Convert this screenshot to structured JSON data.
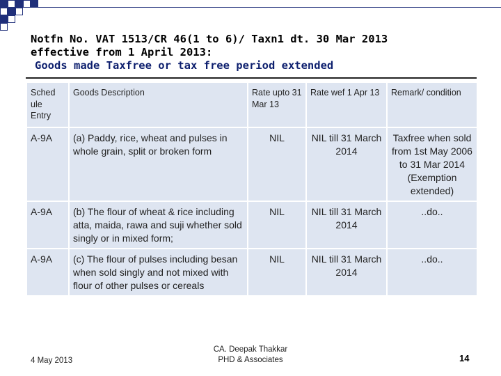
{
  "slide": {
    "title_line1": "Notfn No. VAT 1513/CR 46(1 to 6)/ Taxn1 dt. 30 Mar 2013",
    "title_line2": "effective from 1 April 2013:",
    "title_line3": "Goods made Taxfree or tax free period extended",
    "accent_color": "#1f2f7a",
    "table_fill": "#dee5f1"
  },
  "table": {
    "headers": {
      "entry": "Sched ule Entry",
      "description": "Goods Description",
      "rate_upto": "Rate upto 31 Mar 13",
      "rate_wef": "Rate wef 1 Apr 13",
      "remark": "Remark/ condition"
    },
    "rows": [
      {
        "entry": "A-9A",
        "description": "(a) Paddy, rice, wheat and pulses in whole grain, split or broken form",
        "rate_upto": "NIL",
        "rate_wef": "NIL till 31 March 2014",
        "remark": "Taxfree when sold from 1st May 2006 to 31 Mar 2014 (Exemption extended)"
      },
      {
        "entry": "A-9A",
        "description": "(b) The flour of wheat & rice including atta, maida, rawa and suji whether sold singly or in mixed form;",
        "rate_upto": "NIL",
        "rate_wef": "NIL till 31 March 2014",
        "remark": "..do.."
      },
      {
        "entry": "A-9A",
        "description": "(c) The flour of pulses including besan when sold singly and not mixed with flour of other pulses or cereals",
        "rate_upto": "NIL",
        "rate_wef": "NIL till 31 March 2014",
        "remark": "..do.."
      }
    ]
  },
  "footer": {
    "date": "4 May 2013",
    "author_line1": "CA. Deepak Thakkar",
    "author_line2": "PHD & Associates",
    "page_number": "14"
  }
}
